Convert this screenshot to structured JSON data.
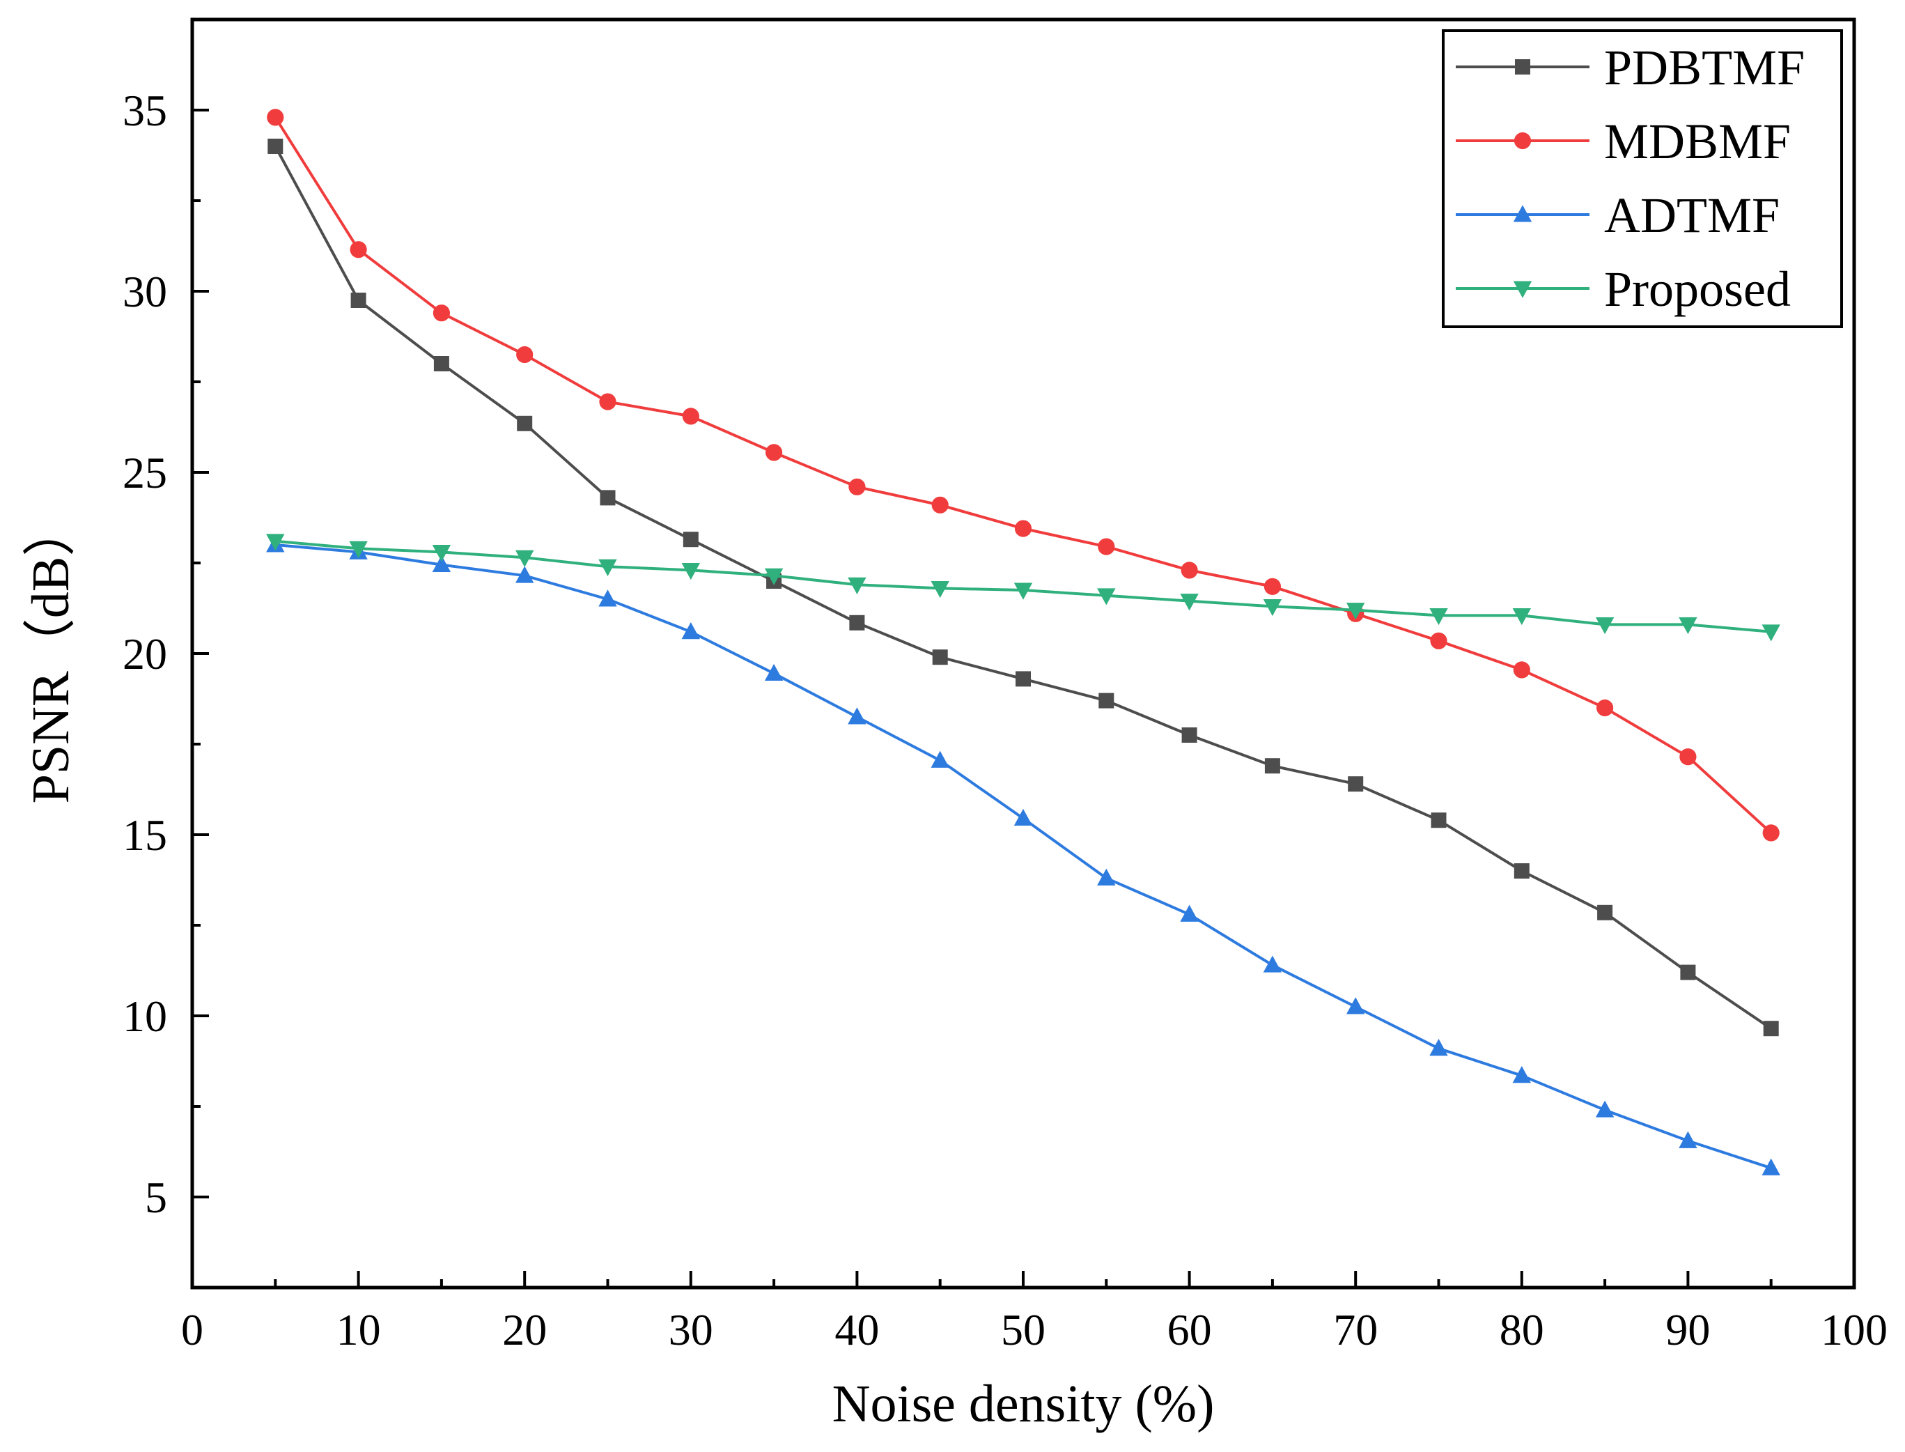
{
  "chart_data": {
    "type": "line",
    "title": "",
    "xlabel": "Noise density (%)",
    "ylabel": "PSNR（dB）",
    "xlim": [
      0,
      100
    ],
    "ylim": [
      2.5,
      37.5
    ],
    "x_ticks": [
      0,
      10,
      20,
      30,
      40,
      50,
      60,
      70,
      80,
      90,
      100
    ],
    "x_tick_labels": [
      "0",
      "10",
      "20",
      "30",
      "40",
      "50",
      "60",
      "70",
      "80",
      "90",
      "100"
    ],
    "y_ticks": [
      5,
      10,
      15,
      20,
      25,
      30,
      35
    ],
    "y_tick_labels": [
      "5",
      "10",
      "15",
      "20",
      "25",
      "30",
      "35"
    ],
    "grid": false,
    "legend_position": "top-right",
    "x": [
      5,
      10,
      15,
      20,
      25,
      30,
      35,
      40,
      45,
      50,
      55,
      60,
      65,
      70,
      75,
      80,
      85,
      90,
      95
    ],
    "series": [
      {
        "name": "PDBTMF",
        "color": "#4d4d4d",
        "marker": "square",
        "values": [
          34.0,
          29.75,
          28.0,
          26.35,
          24.3,
          23.15,
          22.0,
          20.85,
          19.9,
          19.3,
          18.7,
          17.75,
          16.9,
          16.4,
          15.4,
          14.0,
          12.85,
          11.2,
          9.65
        ]
      },
      {
        "name": "MDBMF",
        "color": "#f03c3c",
        "marker": "circle",
        "values": [
          34.8,
          31.15,
          29.4,
          28.25,
          26.95,
          26.55,
          25.55,
          24.6,
          24.1,
          23.45,
          22.95,
          22.3,
          21.85,
          21.1,
          20.35,
          19.55,
          18.5,
          17.15,
          15.05
        ]
      },
      {
        "name": "ADTMF",
        "color": "#2e7be0",
        "marker": "triangle-up",
        "values": [
          23.0,
          22.8,
          22.45,
          22.15,
          21.5,
          20.6,
          19.45,
          18.25,
          17.05,
          15.45,
          13.8,
          12.8,
          11.4,
          10.25,
          9.1,
          8.35,
          7.4,
          6.55,
          5.8
        ]
      },
      {
        "name": "Proposed",
        "color": "#2fb07d",
        "marker": "triangle-down",
        "values": [
          23.1,
          22.9,
          22.8,
          22.65,
          22.4,
          22.3,
          22.15,
          21.9,
          21.8,
          21.75,
          21.6,
          21.45,
          21.3,
          21.2,
          21.05,
          21.05,
          20.8,
          20.8,
          20.6
        ]
      }
    ]
  }
}
